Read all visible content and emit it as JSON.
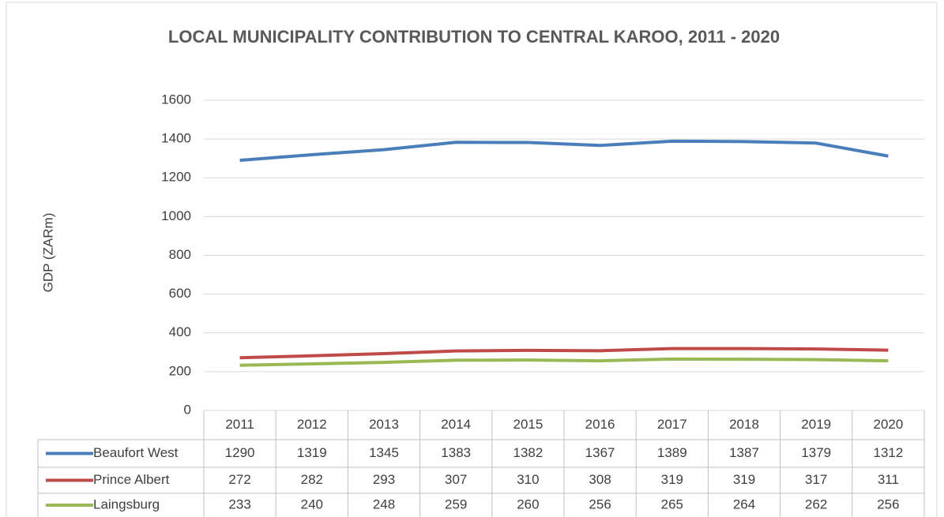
{
  "chart_data": {
    "type": "line",
    "title": "LOCAL MUNICIPALITY CONTRIBUTION TO CENTRAL KAROO, 2011 - 2020",
    "y_label": "GDP (ZARm)",
    "categories": [
      "2011",
      "2012",
      "2013",
      "2014",
      "2015",
      "2016",
      "2017",
      "2018",
      "2019",
      "2020"
    ],
    "series": [
      {
        "name": "Beaufort West",
        "color": "#4a7ebb",
        "values": [
          1290,
          1319,
          1345,
          1383,
          1382,
          1367,
          1389,
          1387,
          1379,
          1312
        ]
      },
      {
        "name": "Prince Albert",
        "color": "#be4b48",
        "values": [
          272,
          282,
          293,
          307,
          310,
          308,
          319,
          319,
          317,
          311
        ]
      },
      {
        "name": "Laingsburg",
        "color": "#98b954",
        "values": [
          233,
          240,
          248,
          259,
          260,
          256,
          265,
          264,
          262,
          256
        ]
      }
    ],
    "ylim": [
      0,
      1600
    ],
    "yticks": [
      0,
      200,
      400,
      600,
      800,
      1000,
      1200,
      1400,
      1600
    ],
    "grid": true,
    "data_table": true
  }
}
